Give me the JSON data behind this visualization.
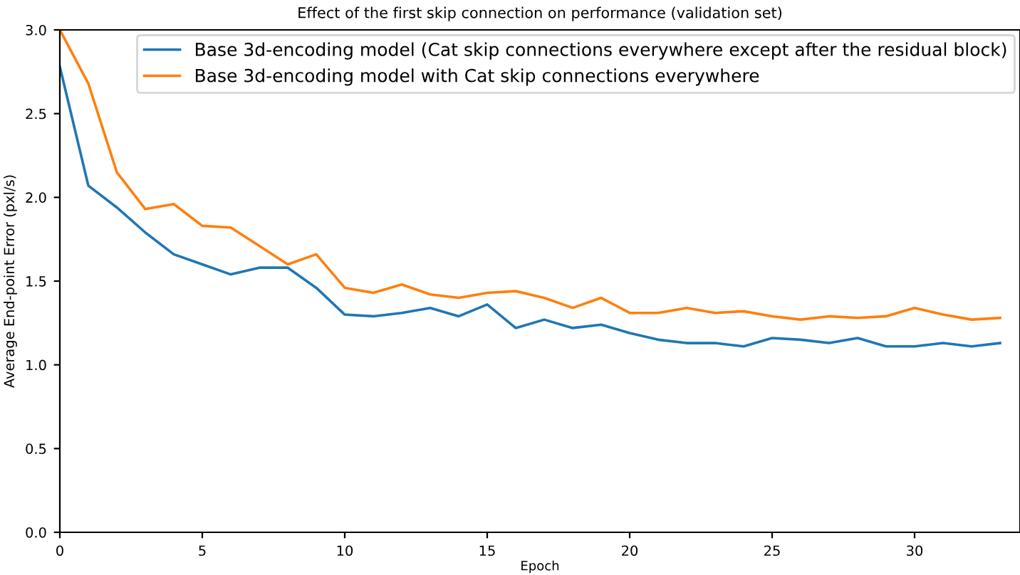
{
  "chart_data": {
    "type": "line",
    "title": "Effect of the first skip connection on performance (validation set)",
    "xlabel": "Epoch",
    "ylabel": "Average End-point Error (pxl/s)",
    "x": [
      0,
      1,
      2,
      3,
      4,
      5,
      6,
      7,
      8,
      9,
      10,
      11,
      12,
      13,
      14,
      15,
      16,
      17,
      18,
      19,
      20,
      21,
      22,
      23,
      24,
      25,
      26,
      27,
      28,
      29,
      30,
      31,
      32,
      33
    ],
    "series": [
      {
        "name": "Base 3d-encoding model (Cat skip connections everywhere except after the residual block)",
        "color": "#1f77b4",
        "values": [
          2.78,
          2.07,
          1.94,
          1.79,
          1.66,
          1.6,
          1.54,
          1.58,
          1.58,
          1.46,
          1.3,
          1.29,
          1.31,
          1.34,
          1.29,
          1.36,
          1.22,
          1.27,
          1.22,
          1.24,
          1.19,
          1.15,
          1.13,
          1.13,
          1.11,
          1.16,
          1.15,
          1.13,
          1.16,
          1.11,
          1.11,
          1.13,
          1.11,
          1.13
        ]
      },
      {
        "name": "Base 3d-encoding model with Cat skip connections everywhere",
        "color": "#ff7f0e",
        "values": [
          3.0,
          2.68,
          2.15,
          1.93,
          1.96,
          1.83,
          1.82,
          1.71,
          1.6,
          1.66,
          1.46,
          1.43,
          1.48,
          1.42,
          1.4,
          1.43,
          1.44,
          1.4,
          1.34,
          1.4,
          1.31,
          1.31,
          1.34,
          1.31,
          1.32,
          1.29,
          1.27,
          1.29,
          1.28,
          1.29,
          1.34,
          1.3,
          1.27,
          1.28
        ]
      }
    ],
    "xlim": [
      0,
      33.7
    ],
    "ylim": [
      0,
      3.0
    ],
    "xticks": [
      0,
      5,
      10,
      15,
      20,
      25,
      30
    ],
    "yticks": [
      {
        "value": 0,
        "label": "0.0"
      },
      {
        "value": 0.5,
        "label": "0.5"
      },
      {
        "value": 1,
        "label": "1.0"
      },
      {
        "value": 1.5,
        "label": "1.5"
      },
      {
        "value": 2,
        "label": "2.0"
      },
      {
        "value": 2.5,
        "label": "2.5"
      },
      {
        "value": 3,
        "label": "3.0"
      }
    ],
    "grid": false,
    "legend": "top right",
    "marker": "none",
    "line_style": "solid"
  }
}
